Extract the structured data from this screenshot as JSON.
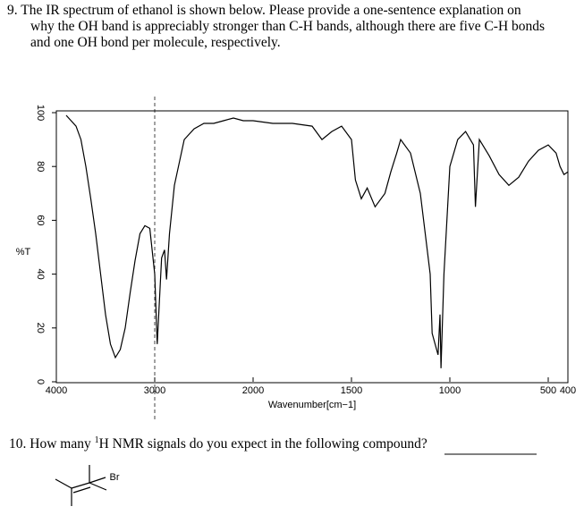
{
  "question9": {
    "lines": [
      "9. The IR spectrum of ethanol is shown below.  Please provide a one-sentence explanation on",
      "why the OH band is appreciably stronger than C-H bands, although there are five C-H bonds",
      "and one OH bond per molecule, respectively."
    ]
  },
  "chart_data": {
    "type": "line",
    "ylabel": "%T",
    "xlabel": "Wavenumber[cm−1]",
    "xlim": [
      4000,
      400
    ],
    "x_break": 2000,
    "ylim": [
      0,
      100
    ],
    "xticks": [
      4000,
      3000,
      2000,
      1500,
      1000,
      500,
      400
    ],
    "yticks": [
      0,
      20,
      40,
      60,
      80,
      100
    ],
    "color": "#000000",
    "x": [
      3900,
      3800,
      3750,
      3700,
      3650,
      3600,
      3550,
      3500,
      3450,
      3400,
      3350,
      3300,
      3250,
      3200,
      3150,
      3100,
      3050,
      3000,
      2975,
      2930,
      2900,
      2880,
      2850,
      2800,
      2700,
      2600,
      2500,
      2400,
      2300,
      2200,
      2100,
      2000,
      1900,
      1800,
      1700,
      1650,
      1600,
      1550,
      1500,
      1480,
      1450,
      1420,
      1380,
      1330,
      1300,
      1270,
      1250,
      1200,
      1150,
      1100,
      1090,
      1060,
      1050,
      1045,
      1030,
      1000,
      960,
      920,
      880,
      870,
      850,
      800,
      750,
      700,
      650,
      600,
      550,
      500,
      460,
      440,
      420,
      400
    ],
    "values": [
      99,
      95,
      90,
      80,
      68,
      55,
      40,
      25,
      14,
      9,
      12,
      20,
      33,
      45,
      55,
      58,
      57,
      40,
      14,
      46,
      49,
      38,
      55,
      73,
      90,
      94,
      96,
      96,
      97,
      98,
      97,
      97,
      96,
      96,
      95,
      90,
      93,
      95,
      90,
      75,
      68,
      72,
      65,
      70,
      78,
      85,
      90,
      85,
      70,
      40,
      18,
      10,
      25,
      5,
      40,
      80,
      90,
      93,
      88,
      65,
      90,
      84,
      77,
      73,
      76,
      82,
      86,
      88,
      85,
      80,
      77,
      78
    ]
  },
  "question10": {
    "start": "10. How many ",
    "sup": "1",
    "rest": "H NMR signals do you expect in the following compound?"
  },
  "molecule": {
    "label": "Br"
  }
}
